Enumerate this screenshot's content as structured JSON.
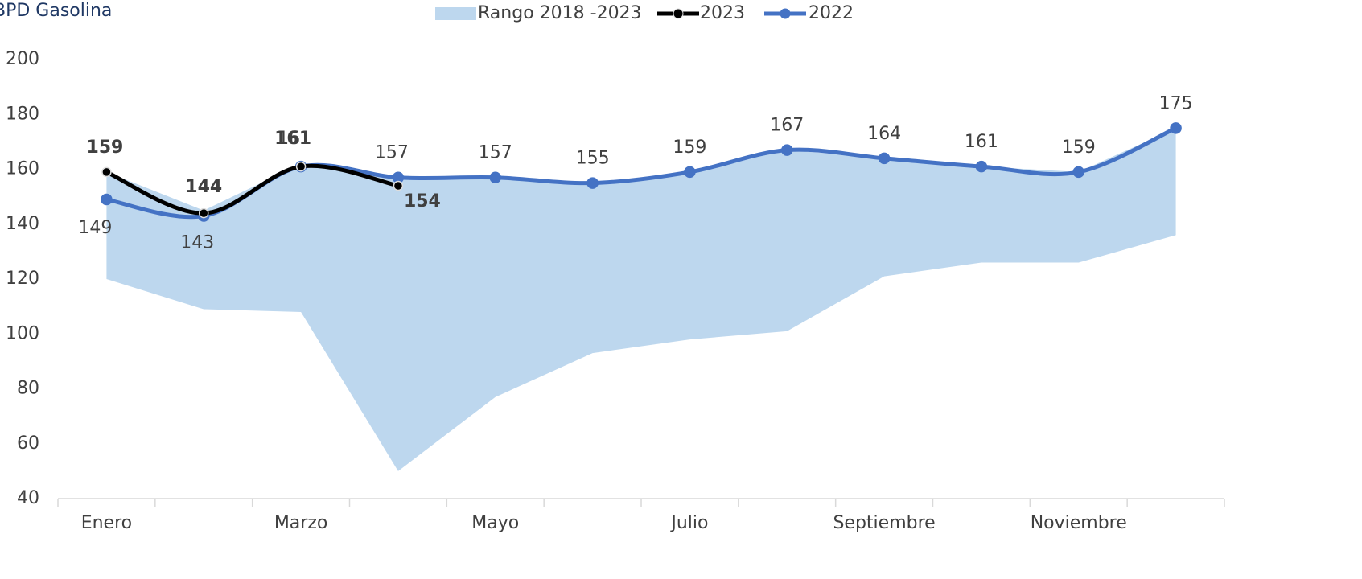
{
  "chart_data": {
    "type": "line",
    "title": "BPD Gasolina",
    "categories": [
      "Enero",
      null,
      "Marzo",
      null,
      "Mayo",
      null,
      "Julio",
      null,
      "Septiembre",
      null,
      "Noviembre",
      null
    ],
    "series": [
      {
        "name": "Rango 2018 -2023",
        "color": "#bdd7ee",
        "kind": "range",
        "values": [
          159,
          145,
          162,
          157,
          157,
          155,
          159,
          167,
          164,
          161,
          159,
          175
        ],
        "lower": [
          120,
          109,
          108,
          50,
          77,
          93,
          98,
          101,
          121,
          126,
          126,
          136
        ]
      },
      {
        "name": "2023",
        "color": "#000000",
        "values": [
          159,
          144,
          161,
          154,
          null,
          null,
          null,
          null,
          null,
          null,
          null,
          null
        ]
      },
      {
        "name": "2022",
        "color": "#4472c4",
        "values": [
          149,
          143,
          161,
          157,
          157,
          155,
          159,
          167,
          164,
          161,
          159,
          175
        ]
      }
    ],
    "ylim": [
      40,
      200
    ],
    "yticks": [
      40,
      60,
      80,
      100,
      120,
      140,
      160,
      180,
      200
    ],
    "grid": false,
    "legend": "top"
  }
}
